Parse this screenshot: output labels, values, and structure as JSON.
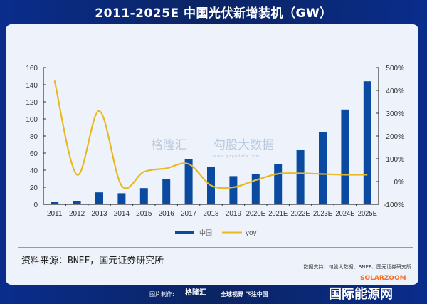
{
  "title": "2011-2025E 中国光伏新增装机（GW）",
  "chart_data": {
    "type": "bar",
    "title": "2011-2025E 中国光伏新增装机（GW）",
    "categories": [
      "2011",
      "2012",
      "2013",
      "2014",
      "2015",
      "2016",
      "2017",
      "2018",
      "2019",
      "2020E",
      "2021E",
      "2022E",
      "2023E",
      "2024E",
      "2025E"
    ],
    "series": [
      {
        "name": "中国",
        "type": "bar",
        "axis": "left",
        "color": "#0a4aa0",
        "values": [
          2.5,
          3.5,
          14,
          13,
          19,
          30,
          53,
          44,
          33,
          35,
          47,
          64,
          85,
          111,
          144
        ]
      },
      {
        "name": "yoy",
        "type": "line",
        "axis": "right",
        "color": "#e8b923",
        "values": [
          443,
          30,
          310,
          -18,
          43,
          58,
          77,
          -17,
          -25,
          6,
          34,
          36,
          33,
          30,
          30
        ]
      }
    ],
    "ylim": [
      0,
      160
    ],
    "yticks": [
      0,
      20,
      40,
      60,
      80,
      100,
      120,
      140,
      160
    ],
    "y2lim": [
      -100,
      500
    ],
    "y2ticks": [
      "-100%",
      "0%",
      "100%",
      "200%",
      "300%",
      "400%",
      "500%"
    ],
    "y2tick_values": [
      -100,
      0,
      100,
      200,
      300,
      400,
      500
    ],
    "legend": "bottom",
    "grid": false
  },
  "source": "资料来源：BNEF，国元证券研究所",
  "support": "数据支持：勾股大数据、BNEF、国元证券研究所",
  "watermarks": {
    "gelonghui": "格隆汇",
    "gogudata": "勾股大数据",
    "gogudata_url": "www.gogudata.com",
    "maker_label": "图片制作:",
    "slogan": "全球视野 下注中国",
    "energy_site": "国际能源网",
    "solarzoom": "SOLARZOOM"
  }
}
